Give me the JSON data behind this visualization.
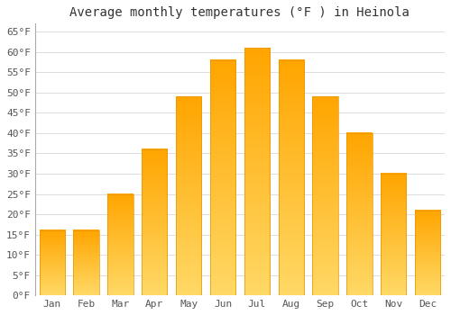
{
  "title": "Average monthly temperatures (°F ) in Heinola",
  "months": [
    "Jan",
    "Feb",
    "Mar",
    "Apr",
    "May",
    "Jun",
    "Jul",
    "Aug",
    "Sep",
    "Oct",
    "Nov",
    "Dec"
  ],
  "values": [
    16,
    16,
    25,
    36,
    49,
    58,
    61,
    58,
    49,
    40,
    30,
    21
  ],
  "bar_color_bottom": "#FFA500",
  "bar_color_top": "#FFD966",
  "bar_edge_color": "#E89400",
  "ylim": [
    0,
    67
  ],
  "yticks": [
    0,
    5,
    10,
    15,
    20,
    25,
    30,
    35,
    40,
    45,
    50,
    55,
    60,
    65
  ],
  "ylabel_suffix": "°F",
  "background_color": "#ffffff",
  "plot_background": "#ffffff",
  "grid_color": "#dddddd",
  "title_fontsize": 10,
  "tick_fontsize": 8,
  "bar_width": 0.75
}
